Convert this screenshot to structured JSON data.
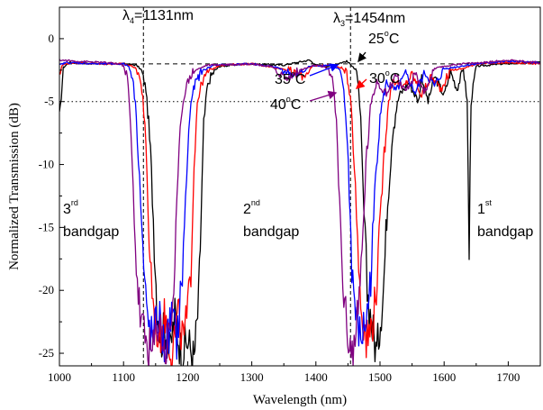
{
  "chart_data": {
    "type": "line",
    "xlabel": "Wavelength (nm)",
    "ylabel": "Normalized Transmission (dB)",
    "xlim": [
      1000,
      1750
    ],
    "ylim": [
      -26,
      2.5
    ],
    "x_ticks": [
      1000,
      1100,
      1200,
      1300,
      1400,
      1500,
      1600,
      1700
    ],
    "y_ticks": [
      0,
      -5,
      -10,
      -15,
      -20,
      -25
    ],
    "reference_lines": {
      "horizontal_dashed": -2,
      "horizontal_dotted": -5,
      "vertical_dashed": [
        1131,
        1454
      ]
    },
    "annotations": {
      "lambda4": {
        "symbol": "λ",
        "sub": "4",
        "value": "=1131nm"
      },
      "lambda3": {
        "symbol": "λ",
        "sub": "3",
        "value": "=1454nm"
      },
      "bandgap3": {
        "ordinal": "3",
        "suffix": "rd",
        "word": "bandgap"
      },
      "bandgap2": {
        "ordinal": "2",
        "suffix": "nd",
        "word": "bandgap"
      },
      "bandgap1": {
        "ordinal": "1",
        "suffix": "st",
        "word": "bandgap"
      },
      "temp25": {
        "value": "25",
        "deg": "o",
        "unit": "C"
      },
      "temp30": {
        "value": "30",
        "deg": "o",
        "unit": "C"
      },
      "temp35": {
        "value": "35",
        "deg": "o",
        "unit": "C"
      },
      "temp40": {
        "value": "40",
        "deg": "o",
        "unit": "C"
      }
    },
    "series": [
      {
        "name": "25°C",
        "color": "#000000",
        "points": [
          [
            1000,
            -6.5
          ],
          [
            1003,
            -4.5
          ],
          [
            1006,
            -2.3
          ],
          [
            1015,
            -1.9
          ],
          [
            1060,
            -2
          ],
          [
            1100,
            -2
          ],
          [
            1120,
            -2.1
          ],
          [
            1128,
            -2.5
          ],
          [
            1135,
            -4
          ],
          [
            1142,
            -9
          ],
          [
            1148,
            -16
          ],
          [
            1152,
            -21
          ],
          [
            1158,
            -24
          ],
          [
            1165,
            -23
          ],
          [
            1172,
            -25
          ],
          [
            1180,
            -22
          ],
          [
            1190,
            -25
          ],
          [
            1200,
            -24
          ],
          [
            1210,
            -25.5
          ],
          [
            1217,
            -21
          ],
          [
            1221,
            -14
          ],
          [
            1225,
            -7
          ],
          [
            1230,
            -4
          ],
          [
            1236,
            -3
          ],
          [
            1243,
            -2.5
          ],
          [
            1250,
            -2.2
          ],
          [
            1290,
            -2
          ],
          [
            1350,
            -2.1
          ],
          [
            1390,
            -1.7
          ],
          [
            1400,
            -2.1
          ],
          [
            1420,
            -2.2
          ],
          [
            1440,
            -1.9
          ],
          [
            1448,
            -1.8
          ],
          [
            1458,
            -2.2
          ],
          [
            1465,
            -3
          ],
          [
            1470,
            -7
          ],
          [
            1475,
            -14
          ],
          [
            1480,
            -20
          ],
          [
            1488,
            -23
          ],
          [
            1495,
            -25
          ],
          [
            1505,
            -20
          ],
          [
            1512,
            -13
          ],
          [
            1520,
            -7
          ],
          [
            1530,
            -4.5
          ],
          [
            1545,
            -3.5
          ],
          [
            1560,
            -5
          ],
          [
            1565,
            -3
          ],
          [
            1575,
            -5
          ],
          [
            1585,
            -3
          ],
          [
            1600,
            -4.5
          ],
          [
            1610,
            -2.6
          ],
          [
            1620,
            -4
          ],
          [
            1630,
            -2.4
          ],
          [
            1636,
            -5
          ],
          [
            1639,
            -17
          ],
          [
            1642,
            -5
          ],
          [
            1650,
            -2.2
          ],
          [
            1690,
            -2
          ],
          [
            1750,
            -1.9
          ]
        ]
      },
      {
        "name": "30°C",
        "color": "#ff0000",
        "points": [
          [
            1000,
            -3
          ],
          [
            1004,
            -2.1
          ],
          [
            1020,
            -1.9
          ],
          [
            1060,
            -2
          ],
          [
            1100,
            -2
          ],
          [
            1115,
            -2.2
          ],
          [
            1123,
            -2.6
          ],
          [
            1130,
            -4.5
          ],
          [
            1135,
            -9
          ],
          [
            1140,
            -16
          ],
          [
            1146,
            -21
          ],
          [
            1155,
            -24
          ],
          [
            1165,
            -22
          ],
          [
            1175,
            -25
          ],
          [
            1185,
            -22
          ],
          [
            1193,
            -24
          ],
          [
            1200,
            -22
          ],
          [
            1205,
            -18
          ],
          [
            1210,
            -10
          ],
          [
            1215,
            -5
          ],
          [
            1222,
            -3.5
          ],
          [
            1232,
            -2.6
          ],
          [
            1250,
            -2.1
          ],
          [
            1300,
            -2
          ],
          [
            1350,
            -2.4
          ],
          [
            1380,
            -3
          ],
          [
            1395,
            -2.2
          ],
          [
            1420,
            -2.1
          ],
          [
            1440,
            -2.3
          ],
          [
            1448,
            -2.8
          ],
          [
            1455,
            -5
          ],
          [
            1460,
            -10
          ],
          [
            1465,
            -16
          ],
          [
            1470,
            -21
          ],
          [
            1480,
            -24
          ],
          [
            1490,
            -22
          ],
          [
            1497,
            -18
          ],
          [
            1505,
            -10
          ],
          [
            1512,
            -5.5
          ],
          [
            1520,
            -3.2
          ],
          [
            1535,
            -4
          ],
          [
            1550,
            -2.8
          ],
          [
            1565,
            -4.5
          ],
          [
            1580,
            -3
          ],
          [
            1595,
            -4
          ],
          [
            1610,
            -2.5
          ],
          [
            1628,
            -2.4
          ],
          [
            1650,
            -2
          ],
          [
            1700,
            -1.9
          ],
          [
            1750,
            -2
          ]
        ]
      },
      {
        "name": "35°C",
        "color": "#0000ff",
        "points": [
          [
            1000,
            -2.1
          ],
          [
            1010,
            -1.9
          ],
          [
            1060,
            -2
          ],
          [
            1100,
            -2
          ],
          [
            1108,
            -2.2
          ],
          [
            1114,
            -3
          ],
          [
            1120,
            -6
          ],
          [
            1125,
            -11
          ],
          [
            1130,
            -17
          ],
          [
            1136,
            -22
          ],
          [
            1145,
            -24
          ],
          [
            1155,
            -22
          ],
          [
            1165,
            -25
          ],
          [
            1175,
            -22
          ],
          [
            1183,
            -24
          ],
          [
            1190,
            -20
          ],
          [
            1195,
            -15
          ],
          [
            1200,
            -9
          ],
          [
            1205,
            -5
          ],
          [
            1212,
            -3.5
          ],
          [
            1222,
            -2.6
          ],
          [
            1240,
            -2.1
          ],
          [
            1300,
            -2
          ],
          [
            1340,
            -2.3
          ],
          [
            1370,
            -3
          ],
          [
            1390,
            -2.2
          ],
          [
            1420,
            -2.1
          ],
          [
            1435,
            -2.4
          ],
          [
            1442,
            -3.5
          ],
          [
            1448,
            -7
          ],
          [
            1452,
            -12
          ],
          [
            1456,
            -18
          ],
          [
            1462,
            -22
          ],
          [
            1470,
            -24
          ],
          [
            1480,
            -22
          ],
          [
            1487,
            -18
          ],
          [
            1493,
            -11
          ],
          [
            1500,
            -6
          ],
          [
            1510,
            -3.5
          ],
          [
            1525,
            -4.2
          ],
          [
            1540,
            -2.8
          ],
          [
            1555,
            -4.3
          ],
          [
            1570,
            -2.7
          ],
          [
            1585,
            -3.8
          ],
          [
            1600,
            -2.4
          ],
          [
            1625,
            -2.2
          ],
          [
            1650,
            -2
          ],
          [
            1700,
            -1.8
          ],
          [
            1750,
            -1.9
          ]
        ]
      },
      {
        "name": "40°C",
        "color": "#800080",
        "points": [
          [
            1000,
            -1.7
          ],
          [
            1030,
            -1.8
          ],
          [
            1070,
            -1.9
          ],
          [
            1095,
            -2
          ],
          [
            1100,
            -2.2
          ],
          [
            1106,
            -3
          ],
          [
            1110,
            -6
          ],
          [
            1115,
            -12
          ],
          [
            1120,
            -18
          ],
          [
            1126,
            -22
          ],
          [
            1135,
            -24
          ],
          [
            1145,
            -25
          ],
          [
            1155,
            -22
          ],
          [
            1165,
            -25
          ],
          [
            1175,
            -22
          ],
          [
            1180,
            -18
          ],
          [
            1185,
            -11
          ],
          [
            1190,
            -6
          ],
          [
            1197,
            -3.8
          ],
          [
            1208,
            -2.6
          ],
          [
            1230,
            -2.1
          ],
          [
            1300,
            -2
          ],
          [
            1330,
            -2.2
          ],
          [
            1355,
            -3.2
          ],
          [
            1375,
            -2.5
          ],
          [
            1400,
            -2.1
          ],
          [
            1420,
            -2.4
          ],
          [
            1427,
            -3.5
          ],
          [
            1432,
            -7
          ],
          [
            1437,
            -13
          ],
          [
            1442,
            -19
          ],
          [
            1448,
            -23
          ],
          [
            1458,
            -25
          ],
          [
            1466,
            -22
          ],
          [
            1472,
            -17
          ],
          [
            1478,
            -10
          ],
          [
            1485,
            -5.5
          ],
          [
            1495,
            -3.3
          ],
          [
            1510,
            -4.4
          ],
          [
            1525,
            -2.8
          ],
          [
            1540,
            -4.4
          ],
          [
            1555,
            -2.8
          ],
          [
            1570,
            -4.2
          ],
          [
            1585,
            -2.4
          ],
          [
            1600,
            -2.2
          ],
          [
            1625,
            -2
          ],
          [
            1660,
            -1.9
          ],
          [
            1700,
            -1.7
          ],
          [
            1750,
            -1.9
          ]
        ]
      }
    ]
  }
}
